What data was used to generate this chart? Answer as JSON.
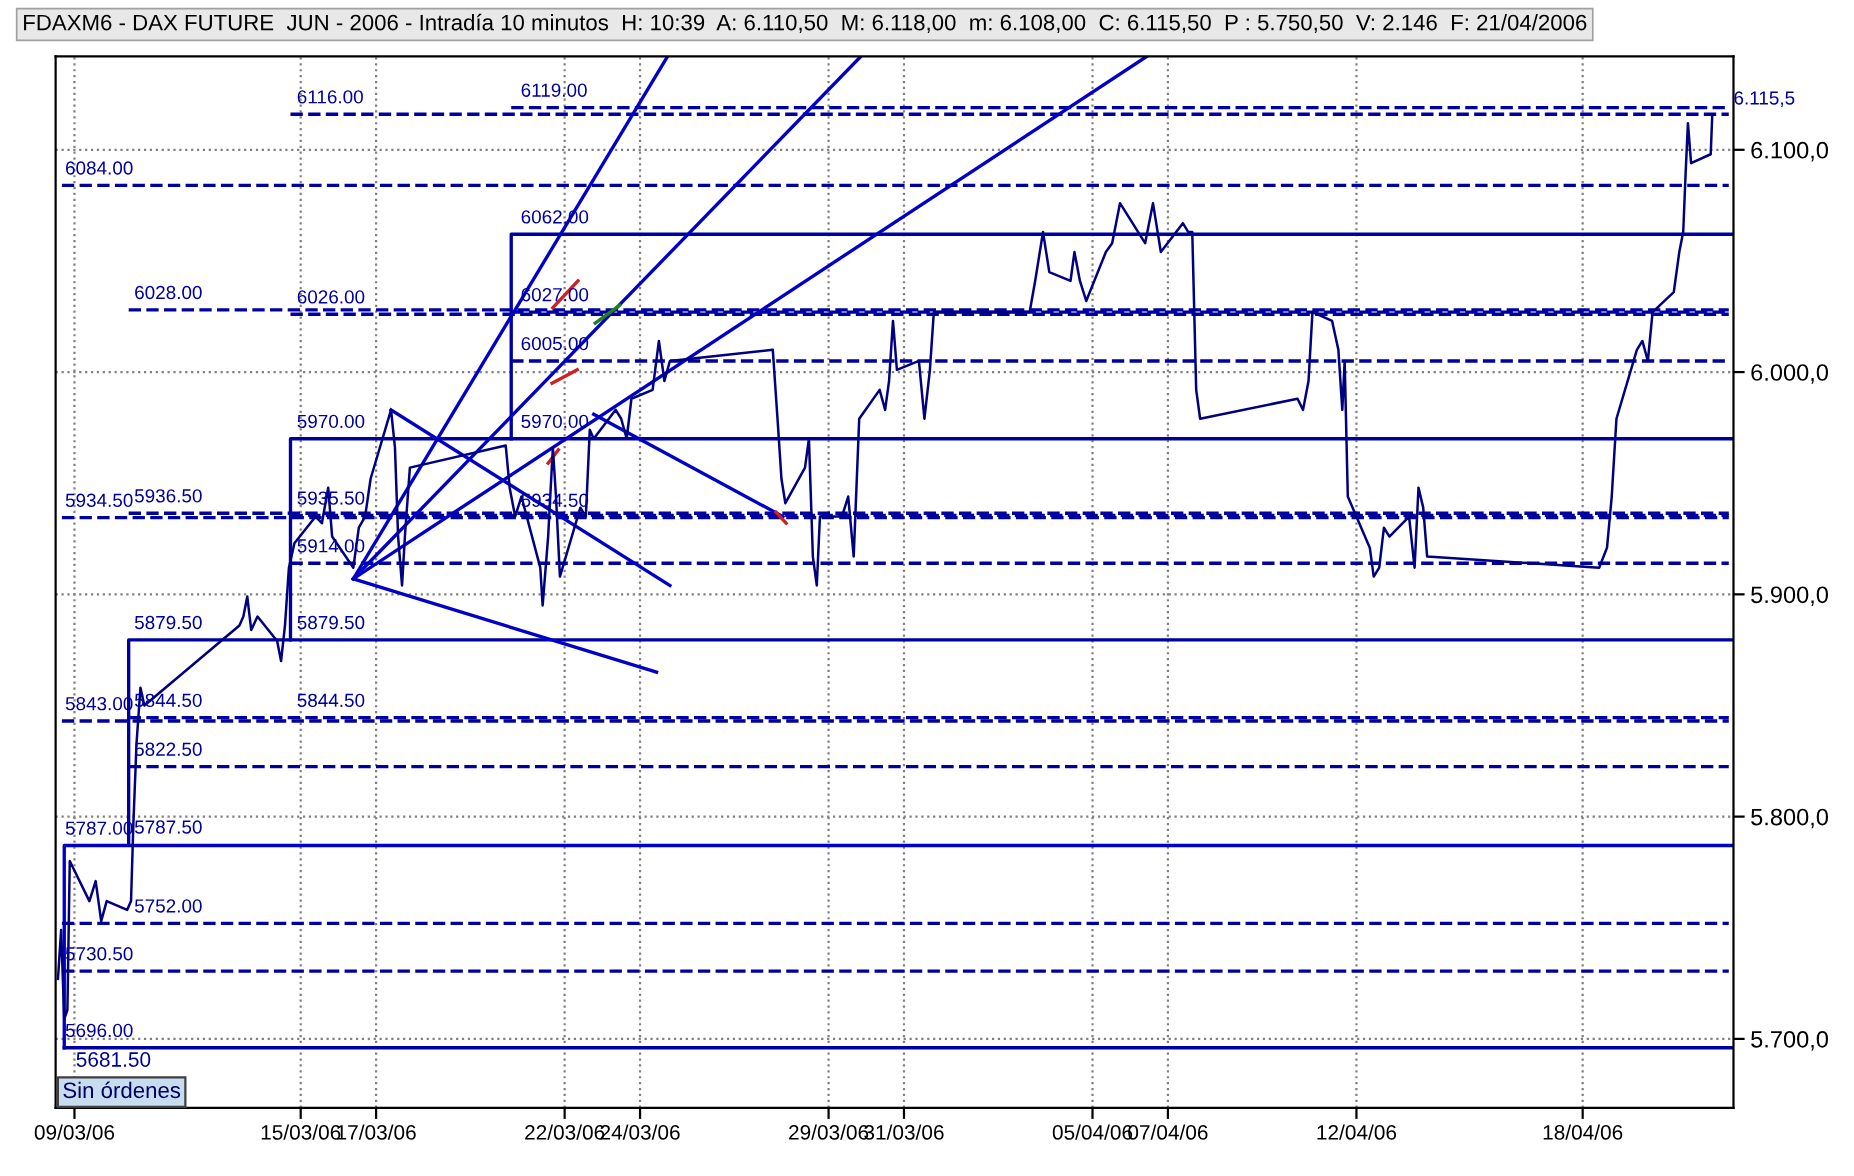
{
  "chart_data": {
    "type": "line",
    "title": "FDAXM6 - DAX FUTURE  JUN - 2006 - Intradía 10 minutos  H: 10:39  A: 6.110,50  M: 6.118,00  m: 6.108,00  C: 6.115,50  P : 5.750,50  V: 2.146  F: 21/04/2006",
    "xlim": [
      "2006-03-08T12:00",
      "2006-04-22"
    ],
    "ylim": [
      5669,
      6142
    ],
    "xticks": [
      {
        "value": "2006-03-09",
        "label": "09/03/06"
      },
      {
        "value": "2006-03-15",
        "label": "15/03/06"
      },
      {
        "value": "2006-03-17",
        "label": "17/03/06"
      },
      {
        "value": "2006-03-22",
        "label": "22/03/06"
      },
      {
        "value": "2006-03-24",
        "label": "24/03/06"
      },
      {
        "value": "2006-03-29",
        "label": "29/03/06"
      },
      {
        "value": "2006-03-31",
        "label": "31/03/06"
      },
      {
        "value": "2006-04-05",
        "label": "05/04/06"
      },
      {
        "value": "2006-04-07",
        "label": "07/04/06"
      },
      {
        "value": "2006-04-12",
        "label": "12/04/06"
      },
      {
        "value": "2006-04-18",
        "label": "18/04/06"
      }
    ],
    "yticks": [
      {
        "value": 5700,
        "label": "5.700,0"
      },
      {
        "value": 5800,
        "label": "5.800,0"
      },
      {
        "value": 5900,
        "label": "5.900,0"
      },
      {
        "value": 6000,
        "label": "6.000,0"
      },
      {
        "value": 6100,
        "label": "6.100,0"
      }
    ],
    "grid": true,
    "marker": "none",
    "series": [
      {
        "color": "#000080",
        "line_style": "solid",
        "x": [
          "2006-03-08T13:30",
          "2006-03-08T15:30",
          "2006-03-08T17:30",
          "2006-03-08T19:30",
          "2006-03-08T21:00",
          "2006-03-09T09:30",
          "2006-03-09T13:30",
          "2006-03-09T17:00",
          "2006-03-09T20:30",
          "2006-03-10T09:30",
          "2006-03-10T12:00",
          "2006-03-10T13:30",
          "2006-03-10T15:30",
          "2006-03-10T18:00",
          "2006-03-10T20:30",
          "2006-03-13T09:00",
          "2006-03-13T11:30",
          "2006-03-13T14:00",
          "2006-03-13T16:30",
          "2006-03-13T20:30",
          "2006-03-14T09:00",
          "2006-03-14T11:30",
          "2006-03-14T14:00",
          "2006-03-14T16:30",
          "2006-03-14T20:00",
          "2006-03-15T09:30",
          "2006-03-15T13:30",
          "2006-03-15T17:30",
          "2006-03-15T20:00",
          "2006-03-16T09:30",
          "2006-03-16T13:00",
          "2006-03-16T17:00",
          "2006-03-16T20:30",
          "2006-03-17T09:30",
          "2006-03-17T12:00",
          "2006-03-17T14:00",
          "2006-03-17T16:30",
          "2006-03-17T18:30",
          "2006-03-17T21:30",
          "2006-03-20T10:30",
          "2006-03-20T13:00",
          "2006-03-20T16:30",
          "2006-03-20T20:30",
          "2006-03-21T08:30",
          "2006-03-21T10:00",
          "2006-03-21T13:30",
          "2006-03-21T16:30",
          "2006-03-21T18:30",
          "2006-03-21T21:00",
          "2006-03-22T10:00",
          "2006-03-22T13:30",
          "2006-03-22T16:00",
          "2006-03-22T18:30",
          "2006-03-23T08:30",
          "2006-03-23T12:00",
          "2006-03-23T15:30",
          "2006-03-23T18:30",
          "2006-03-24T08:00",
          "2006-03-24T12:00",
          "2006-03-24T15:30",
          "2006-03-24T19:00",
          "2006-03-27T12:30",
          "2006-03-27T15:30",
          "2006-03-27T18:00",
          "2006-03-27T20:30",
          "2006-03-28T09:00",
          "2006-03-28T11:30",
          "2006-03-28T14:00",
          "2006-03-28T16:30",
          "2006-03-28T18:30",
          "2006-03-29T08:30",
          "2006-03-29T12:30",
          "2006-03-29T16:00",
          "2006-03-29T19:30",
          "2006-03-30T08:30",
          "2006-03-30T12:00",
          "2006-03-30T14:30",
          "2006-03-30T17:00",
          "2006-03-30T19:30",
          "2006-03-31T09:30",
          "2006-03-31T13:00",
          "2006-03-31T16:30",
          "2006-03-31T19:00",
          "2006-04-03T08:00",
          "2006-04-03T11:30",
          "2006-04-03T16:30",
          "2006-04-03T20:30",
          "2006-04-04T10:00",
          "2006-04-04T12:30",
          "2006-04-04T16:00",
          "2006-04-04T20:00",
          "2006-04-05T08:30",
          "2006-04-05T12:30",
          "2006-04-05T17:30",
          "2006-04-06T09:30",
          "2006-04-06T14:30",
          "2006-04-06T19:30",
          "2006-04-07T09:30",
          "2006-04-07T13:00",
          "2006-04-07T15:30",
          "2006-04-07T18:00",
          "2006-04-07T20:30",
          "2006-04-10T10:30",
          "2006-04-10T14:00",
          "2006-04-10T17:30",
          "2006-04-10T20:00",
          "2006-04-11T08:30",
          "2006-04-11T12:30",
          "2006-04-11T15:00",
          "2006-04-11T16:30",
          "2006-04-11T18:30",
          "2006-04-12T08:30",
          "2006-04-12T11:00",
          "2006-04-12T14:30",
          "2006-04-12T17:30",
          "2006-04-12T21:00",
          "2006-04-13T09:30",
          "2006-04-13T13:00",
          "2006-04-13T15:30",
          "2006-04-13T18:30",
          "2006-04-13T21:00",
          "2006-04-18T10:30",
          "2006-04-18T15:30",
          "2006-04-18T18:30",
          "2006-04-18T21:30",
          "2006-04-19T10:30",
          "2006-04-19T14:00",
          "2006-04-19T17:30",
          "2006-04-19T20:30",
          "2006-04-20T10:00",
          "2006-04-20T13:30",
          "2006-04-20T16:00",
          "2006-04-20T17:30",
          "2006-04-20T19:00",
          "2006-04-20T21:00",
          "2006-04-21T09:30",
          "2006-04-21T10:30"
        ],
        "values": [
          5727,
          5749,
          5709,
          5713,
          5780,
          5762,
          5771,
          5753,
          5762,
          5758,
          5762,
          5797,
          5833,
          5858,
          5850,
          5886,
          5890,
          5899,
          5884,
          5890,
          5879,
          5870,
          5886,
          5912,
          5923,
          5935,
          5932,
          5948,
          5926,
          5912,
          5930,
          5935,
          5952,
          5983,
          5966,
          5926,
          5904,
          5928,
          5957,
          5967,
          5948,
          5935,
          5944,
          5912,
          5895,
          5926,
          5966,
          5944,
          5908,
          5939,
          5935,
          5974,
          5970,
          5983,
          5979,
          5970,
          5988,
          5992,
          6014,
          5996,
          6005,
          6010,
          5979,
          5952,
          5941,
          5957,
          5970,
          5917,
          5904,
          5935,
          5935,
          5944,
          5917,
          5979,
          5992,
          5983,
          5996,
          6023,
          6001,
          6005,
          5979,
          6001,
          6027,
          6027,
          6041,
          6063,
          6045,
          6041,
          6054,
          6041,
          6032,
          6054,
          6058,
          6076,
          6058,
          6076,
          6054,
          6067,
          6063,
          6063,
          5992,
          5979,
          5988,
          5983,
          5996,
          6027,
          6023,
          6010,
          5983,
          6005,
          5944,
          5921,
          5908,
          5912,
          5930,
          5926,
          5935,
          5912,
          5948,
          5939,
          5917,
          5912,
          5921,
          5944,
          5979,
          6010,
          6014,
          6005,
          6027,
          6036,
          6054,
          6063,
          6089,
          6112,
          6094,
          6098,
          6116
        ]
      },
      {
        "color": "#0000a0",
        "line_style": "dashed",
        "x": [
          "2006-03-14T17:30",
          "2006-04-21T21:00"
        ],
        "values": [
          6116,
          6116
        ]
      },
      {
        "color": "#0000a0",
        "line_style": "dashed",
        "x": [
          "2006-03-20T14:00",
          "2006-04-21T21:00"
        ],
        "values": [
          6119,
          6119
        ]
      },
      {
        "color": "#0000a0",
        "line_style": "dashed",
        "x": [
          "2006-03-08T16:00",
          "2006-04-21T21:00"
        ],
        "values": [
          6084,
          6084
        ]
      },
      {
        "color": "#0000a0",
        "line_style": "solid",
        "x": [
          "2006-03-20T14:00",
          "2006-03-20T14:00",
          "2006-04-22"
        ],
        "values": [
          5970,
          6062,
          6062
        ]
      },
      {
        "color": "#0000a0",
        "line_style": "dashed",
        "x": [
          "2006-03-10T10:30",
          "2006-04-21T21:00"
        ],
        "values": [
          6028,
          6028
        ]
      },
      {
        "color": "#0000a0",
        "line_style": "dashed",
        "x": [
          "2006-03-14T17:30",
          "2006-04-21T21:00"
        ],
        "values": [
          6026,
          6026
        ]
      },
      {
        "color": "#0000a0",
        "line_style": "dashed",
        "x": [
          "2006-03-20T14:00",
          "2006-04-21T21:00"
        ],
        "values": [
          6027,
          6027
        ]
      },
      {
        "color": "#0000a0",
        "line_style": "dashed",
        "x": [
          "2006-03-20T14:00",
          "2006-04-21T21:00"
        ],
        "values": [
          6005,
          6005
        ]
      },
      {
        "color": "#0000a0",
        "line_style": "solid",
        "x": [
          "2006-03-14T17:30",
          "2006-03-14T17:30",
          "2006-04-22"
        ],
        "values": [
          5879.5,
          5970,
          5970
        ]
      },
      {
        "color": "#0000a0",
        "line_style": "dashed",
        "x": [
          "2006-03-08T16:00",
          "2006-04-21T21:00"
        ],
        "values": [
          5934.5,
          5934.5
        ]
      },
      {
        "color": "#0000a0",
        "line_style": "dashed",
        "x": [
          "2006-03-10T10:30",
          "2006-04-21T21:00"
        ],
        "values": [
          5936.5,
          5936.5
        ]
      },
      {
        "color": "#0000a0",
        "line_style": "dashed",
        "x": [
          "2006-03-14T17:30",
          "2006-04-21T21:00"
        ],
        "values": [
          5935.5,
          5935.5
        ]
      },
      {
        "color": "#0000a0",
        "line_style": "dashed",
        "x": [
          "2006-03-14T17:30",
          "2006-04-21T21:00"
        ],
        "values": [
          5914,
          5914
        ]
      },
      {
        "color": "#0000a0",
        "line_style": "solid",
        "x": [
          "2006-03-10T10:30",
          "2006-03-10T10:30",
          "2006-04-22"
        ],
        "values": [
          5787.5,
          5879.5,
          5879.5
        ]
      },
      {
        "color": "#0000a0",
        "line_style": "dashed",
        "x": [
          "2006-03-08T16:00",
          "2006-04-21T21:00"
        ],
        "values": [
          5843,
          5843
        ]
      },
      {
        "color": "#0000a0",
        "line_style": "dashed",
        "x": [
          "2006-03-10T10:30",
          "2006-04-21T21:00"
        ],
        "values": [
          5844.5,
          5844.5
        ]
      },
      {
        "color": "#0000a0",
        "line_style": "dashed",
        "x": [
          "2006-03-10T10:30",
          "2006-04-21T21:00"
        ],
        "values": [
          5822.5,
          5822.5
        ]
      },
      {
        "color": "#0000c8",
        "line_style": "solid",
        "x": [
          "2006-03-08T17:30",
          "2006-03-08T17:30",
          "2006-04-22"
        ],
        "values": [
          5696,
          5787,
          5787
        ]
      },
      {
        "color": "#0000a0",
        "line_style": "dashed",
        "x": [
          "2006-03-08T16:00",
          "2006-04-21T21:00"
        ],
        "values": [
          5752,
          5752
        ]
      },
      {
        "color": "#0000a0",
        "line_style": "dashed",
        "x": [
          "2006-03-08T16:00",
          "2006-04-21T21:00"
        ],
        "values": [
          5730.5,
          5730.5
        ]
      },
      {
        "color": "#0000a0",
        "line_style": "solid",
        "x": [
          "2006-03-08T17:30",
          "2006-04-22"
        ],
        "values": [
          5696,
          5696
        ]
      },
      {
        "color": "#0000c8",
        "line_style": "solid",
        "x": [
          "2006-03-16T09:30",
          "2006-03-24T17:30"
        ],
        "values": [
          5907,
          6142
        ]
      },
      {
        "color": "#0000c8",
        "line_style": "solid",
        "x": [
          "2006-03-16T09:30",
          "2006-03-29T20:30"
        ],
        "values": [
          5907,
          6142
        ]
      },
      {
        "color": "#0000c8",
        "line_style": "solid",
        "x": [
          "2006-03-16T09:30",
          "2006-04-06T10:30"
        ],
        "values": [
          5907,
          6142
        ]
      },
      {
        "color": "#0000c8",
        "line_style": "solid",
        "x": [
          "2006-03-17T09:30",
          "2006-03-24T19:00"
        ],
        "values": [
          5983,
          5904
        ]
      },
      {
        "color": "#0000c8",
        "line_style": "solid",
        "x": [
          "2006-03-16T09:30",
          "2006-03-24T10:30"
        ],
        "values": [
          5907,
          5865
        ]
      },
      {
        "color": "#0000c8",
        "line_style": "solid",
        "x": [
          "2006-03-22T18:30",
          "2006-03-27T19:00"
        ],
        "values": [
          5981,
          5935
        ]
      },
      {
        "color": "#d02020",
        "line_style": "solid",
        "x": [
          "2006-03-21T16:30",
          "2006-03-22T08:30"
        ],
        "values": [
          6029,
          6041
        ]
      },
      {
        "color": "#208020",
        "line_style": "solid",
        "x": [
          "2006-03-22T19:30",
          "2006-03-23T11:00"
        ],
        "values": [
          6022,
          6030
        ]
      },
      {
        "color": "#d02020",
        "line_style": "solid",
        "x": [
          "2006-03-21T16:00",
          "2006-03-22T08:00"
        ],
        "values": [
          5995,
          6001
        ]
      },
      {
        "color": "#d02020",
        "line_style": "solid",
        "x": [
          "2006-03-21T13:30",
          "2006-03-21T20:00"
        ],
        "values": [
          5959,
          5965
        ]
      },
      {
        "color": "#d02020",
        "line_style": "solid",
        "x": [
          "2006-03-27T14:30",
          "2006-03-27T21:00"
        ],
        "values": [
          5937,
          5932
        ]
      }
    ],
    "annotations": [
      {
        "text": "6116.00",
        "x": "2006-03-14T21:30",
        "y": 6116
      },
      {
        "text": "6119.00",
        "x": "2006-03-20T20:00",
        "y": 6119
      },
      {
        "text": "6084.00",
        "x": "2006-03-08T18:00",
        "y": 6084
      },
      {
        "text": "6062.00",
        "x": "2006-03-20T20:00",
        "y": 6062
      },
      {
        "text": "6028.00",
        "x": "2006-03-10T14:00",
        "y": 6028
      },
      {
        "text": "6026.00",
        "x": "2006-03-14T21:30",
        "y": 6026
      },
      {
        "text": "6027.00",
        "x": "2006-03-20T20:00",
        "y": 6027
      },
      {
        "text": "6005.00",
        "x": "2006-03-20T20:00",
        "y": 6005
      },
      {
        "text": "5970.00",
        "x": "2006-03-14T21:30",
        "y": 5970
      },
      {
        "text": "5970.00",
        "x": "2006-03-20T20:00",
        "y": 5970
      },
      {
        "text": "5934.50",
        "x": "2006-03-08T18:00",
        "y": 5934.5
      },
      {
        "text": "5936.50",
        "x": "2006-03-10T14:00",
        "y": 5936.5
      },
      {
        "text": "5935.50",
        "x": "2006-03-14T21:30",
        "y": 5935.5
      },
      {
        "text": "5934.50",
        "x": "2006-03-20T20:00",
        "y": 5934.5
      },
      {
        "text": "5914.00",
        "x": "2006-03-14T21:30",
        "y": 5914
      },
      {
        "text": "5879.50",
        "x": "2006-03-10T14:00",
        "y": 5879.5
      },
      {
        "text": "5879.50",
        "x": "2006-03-14T21:30",
        "y": 5879.5
      },
      {
        "text": "5843.00",
        "x": "2006-03-08T18:00",
        "y": 5843
      },
      {
        "text": "5844.50",
        "x": "2006-03-10T14:00",
        "y": 5844.5
      },
      {
        "text": "5844.50",
        "x": "2006-03-14T21:30",
        "y": 5844.5
      },
      {
        "text": "5822.50",
        "x": "2006-03-10T14:00",
        "y": 5822.5
      },
      {
        "text": "5787.00",
        "x": "2006-03-08T18:00",
        "y": 5787
      },
      {
        "text": "5787.50",
        "x": "2006-03-10T14:00",
        "y": 5787.5
      },
      {
        "text": "5752.00",
        "x": "2006-03-10T14:00",
        "y": 5752
      },
      {
        "text": "5730.50",
        "x": "2006-03-08T18:00",
        "y": 5730.5
      },
      {
        "text": "5696.00",
        "x": "2006-03-08T18:00",
        "y": 5696
      },
      {
        "text": "6.115,5",
        "x": "2006-04-22",
        "y": 6115.5
      },
      "5681.50",
      "Sin órdenes"
    ]
  }
}
